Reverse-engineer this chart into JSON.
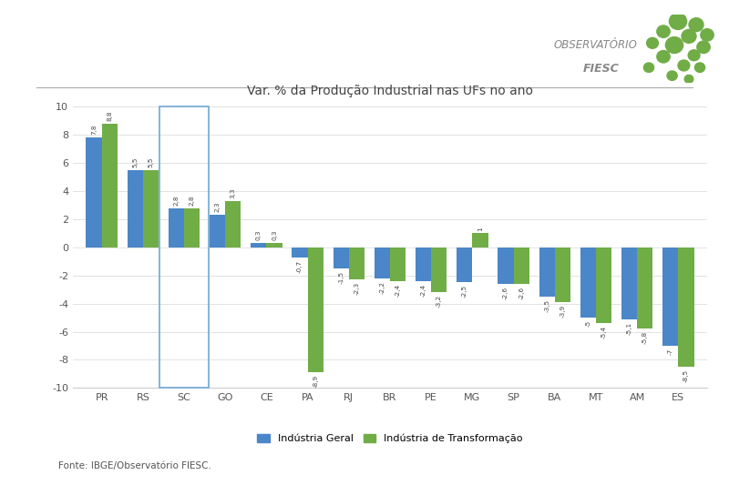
{
  "categories": [
    "PR",
    "RS",
    "SC",
    "GO",
    "CE",
    "PA",
    "RJ",
    "BR",
    "PE",
    "MG",
    "SP",
    "BA",
    "MT",
    "AM",
    "ES"
  ],
  "industria_geral": [
    7.8,
    5.5,
    2.8,
    2.3,
    0.3,
    -0.7,
    -1.5,
    -2.2,
    -2.4,
    -2.5,
    -2.6,
    -3.5,
    -5.0,
    -5.1,
    -7.0
  ],
  "industria_transformacao": [
    8.8,
    5.5,
    2.8,
    3.3,
    0.3,
    -8.9,
    -2.3,
    -2.4,
    -3.2,
    1.0,
    -2.6,
    -3.9,
    -5.4,
    -5.8,
    -8.5
  ],
  "color_geral": "#4A86C8",
  "color_transformacao": "#70AD47",
  "highlight_index": 2,
  "title": "Var. % da Produção Industrial nas UFs no ano",
  "legend_geral": "Indústria Geral",
  "legend_transformacao": "Indústria de Transformação",
  "footnote": "Fonte: IBGE/Observatório FIESC.",
  "ylim": [
    -10,
    10
  ],
  "yticks": [
    -10,
    -8,
    -6,
    -4,
    -2,
    0,
    2,
    4,
    6,
    8,
    10
  ],
  "background_color": "#FFFFFF",
  "bar_width": 0.38,
  "label_geral": [
    "7,8",
    "5,5",
    "2,8",
    "2,3",
    "0,3",
    "-0,7",
    "-1,5",
    "-2,2",
    "-2,4",
    "-2,5",
    "-2,6",
    "-3,5",
    "-5",
    "-5,1",
    "-7"
  ],
  "label_transf": [
    "8,8",
    "5,5",
    "2,8",
    "3,3",
    "0,3",
    "-8,9",
    "-2,3",
    "-2,4",
    "-3,2",
    "1",
    "-2,6",
    "-3,9",
    "-5,4",
    "-5,8",
    "-8,5"
  ]
}
